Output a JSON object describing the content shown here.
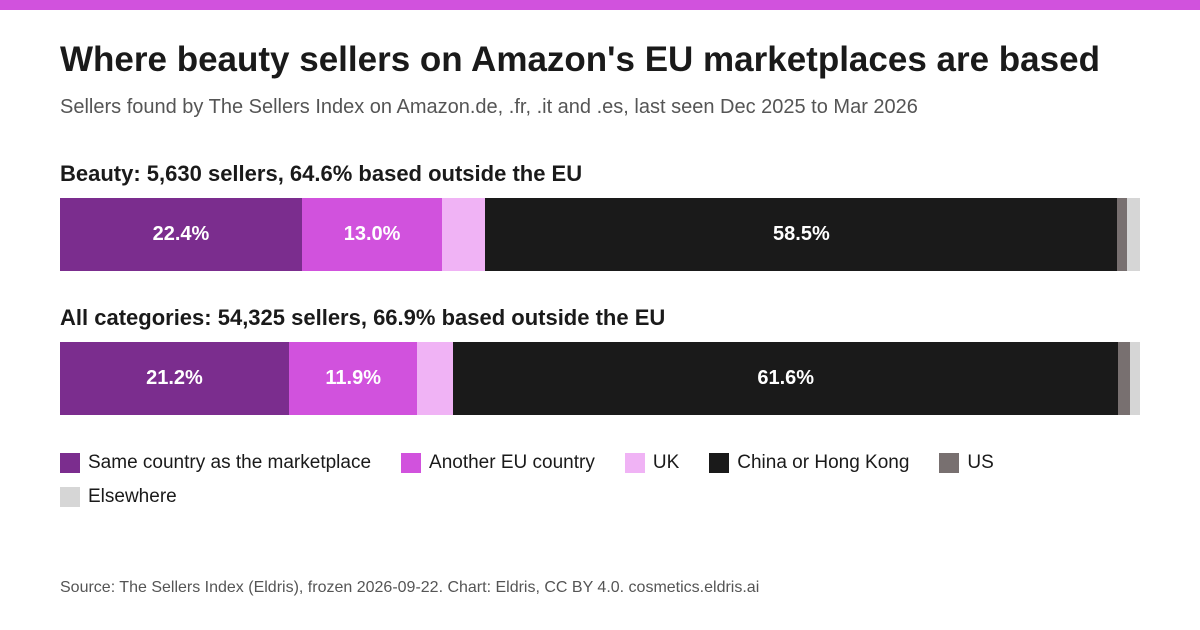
{
  "title": "Where beauty sellers on Amazon's EU marketplaces are based",
  "subtitle": "Sellers found by The Sellers Index on Amazon.de, .fr, .it and .es, last seen Dec 2025 to Mar 2026",
  "source": "Source: The Sellers Index (Eldris), frozen 2026-09-22. Chart: Eldris, CC BY 4.0. cosmetics.eldris.ai",
  "colors": {
    "accent": "#d152dd",
    "same_country": "#7b2d8e",
    "another_eu": "#d152dd",
    "uk": "#f0b3f5",
    "china_hk": "#1a1a1a",
    "us": "#787070",
    "elsewhere": "#d6d6d6"
  },
  "chart_data": {
    "type": "bar",
    "orientation": "horizontal",
    "stacked": true,
    "unit": "percent",
    "xlim": [
      0,
      100
    ],
    "grid": false,
    "legend_position": "bottom",
    "categories": [
      "Beauty: 5,630 sellers, 64.6% based outside the EU",
      "All categories: 54,325 sellers, 66.9% based outside the EU"
    ],
    "series": [
      {
        "name": "Same country as the marketplace",
        "color": "#7b2d8e",
        "values": [
          22.4,
          21.2
        ],
        "labels": [
          "22.4%",
          "21.2%"
        ]
      },
      {
        "name": "Another EU country",
        "color": "#d152dd",
        "values": [
          13.0,
          11.9
        ],
        "labels": [
          "13.0%",
          "11.9%"
        ]
      },
      {
        "name": "UK",
        "color": "#f0b3f5",
        "values": [
          4.0,
          3.3
        ],
        "labels": [
          "",
          ""
        ]
      },
      {
        "name": "China or Hong Kong",
        "color": "#1a1a1a",
        "values": [
          58.5,
          61.6
        ],
        "labels": [
          "58.5%",
          "61.6%"
        ]
      },
      {
        "name": "US",
        "color": "#787070",
        "values": [
          0.9,
          1.1
        ],
        "labels": [
          "",
          ""
        ]
      },
      {
        "name": "Elsewhere",
        "color": "#d6d6d6",
        "values": [
          1.2,
          0.9
        ],
        "labels": [
          "",
          ""
        ]
      }
    ]
  }
}
